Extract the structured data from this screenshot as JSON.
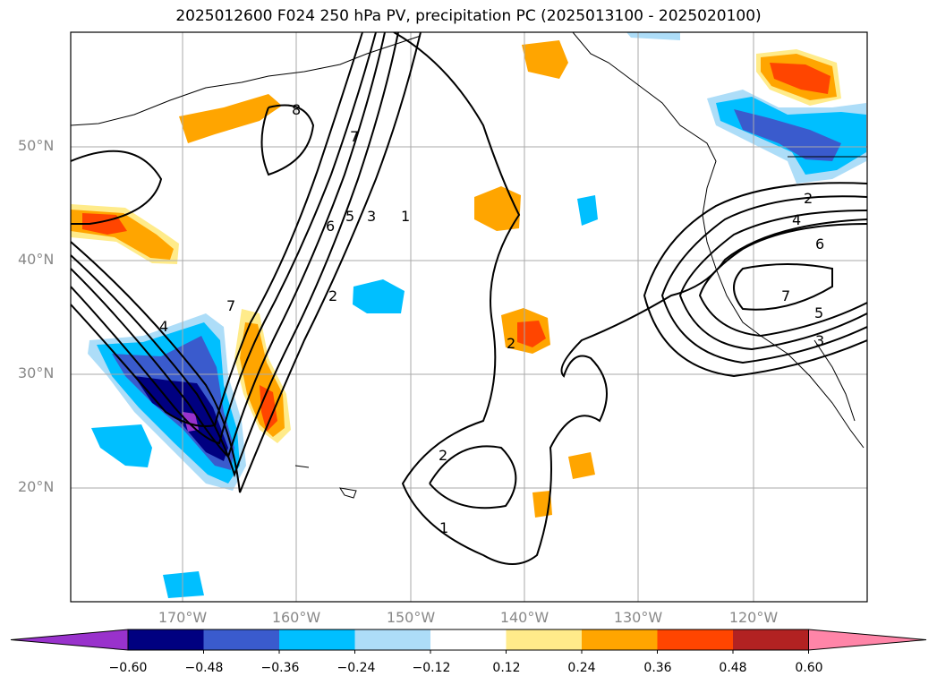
{
  "title": "2025012600 F024 250 hPa PV, precipitation PC (2025013100 - 2025020100)",
  "lat_labels": [
    "50°N",
    "40°N",
    "30°N",
    "20°N"
  ],
  "lon_labels": [
    "170°W",
    "160°W",
    "150°W",
    "140°W",
    "130°W",
    "120°W"
  ],
  "colorbar": {
    "colors": [
      "#9932CC",
      "#000080",
      "#3A5BCD",
      "#00BFFF",
      "#ADDDF8",
      "#FFFFFF",
      "#FFEB8A",
      "#FFA500",
      "#FF4500",
      "#B22222",
      "#FF85A8"
    ],
    "tick_labels": [
      "−0.60",
      "−0.48",
      "−0.36",
      "−0.24",
      "−0.12",
      "0.12",
      "0.24",
      "0.36",
      "0.48",
      "0.60"
    ]
  },
  "contour_labels": [
    "8",
    "7",
    "6",
    "5",
    "3",
    "1",
    "2",
    "4",
    "7",
    "2",
    "4",
    "6",
    "7",
    "5",
    "3",
    "2",
    "2",
    "1"
  ]
}
